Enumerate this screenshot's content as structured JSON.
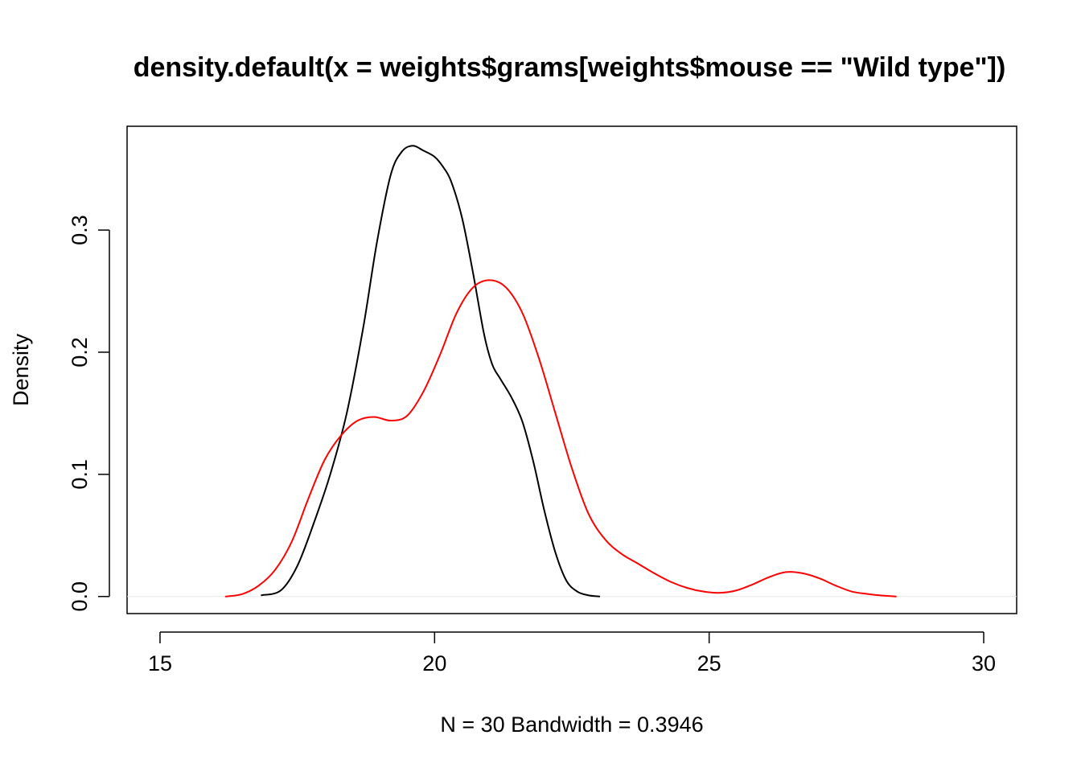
{
  "chart_data": {
    "type": "line",
    "title": "density.default(x = weights$grams[weights$mouse == \"Wild type\"])",
    "xlabel": "N = 30   Bandwidth = 0.3946",
    "ylabel": "Density",
    "xlim": [
      14.4,
      30.6
    ],
    "ylim": [
      -0.014,
      0.385
    ],
    "x_ticks": [
      15,
      20,
      25,
      30
    ],
    "x_tick_labels": [
      "15",
      "20",
      "25",
      "30"
    ],
    "y_ticks": [
      0.0,
      0.1,
      0.2,
      0.3
    ],
    "y_tick_labels": [
      "0.0",
      "0.1",
      "0.2",
      "0.3"
    ],
    "baseline": 0,
    "grid": false,
    "legend": "none",
    "series": [
      {
        "color": "#000000",
        "points": [
          [
            16.85,
            0.001
          ],
          [
            17.2,
            0.005
          ],
          [
            17.5,
            0.025
          ],
          [
            17.8,
            0.06
          ],
          [
            18.1,
            0.1
          ],
          [
            18.4,
            0.15
          ],
          [
            18.7,
            0.22
          ],
          [
            18.95,
            0.29
          ],
          [
            19.2,
            0.345
          ],
          [
            19.4,
            0.364
          ],
          [
            19.6,
            0.369
          ],
          [
            19.8,
            0.365
          ],
          [
            20.0,
            0.36
          ],
          [
            20.15,
            0.352
          ],
          [
            20.3,
            0.34
          ],
          [
            20.5,
            0.31
          ],
          [
            20.7,
            0.265
          ],
          [
            20.9,
            0.215
          ],
          [
            21.05,
            0.19
          ],
          [
            21.2,
            0.178
          ],
          [
            21.4,
            0.163
          ],
          [
            21.6,
            0.143
          ],
          [
            21.8,
            0.11
          ],
          [
            22.0,
            0.07
          ],
          [
            22.2,
            0.036
          ],
          [
            22.4,
            0.013
          ],
          [
            22.6,
            0.004
          ],
          [
            22.8,
            0.001
          ],
          [
            23.0,
            0.0
          ]
        ]
      },
      {
        "color": "#ff0000",
        "points": [
          [
            16.2,
            0.0
          ],
          [
            16.5,
            0.002
          ],
          [
            16.8,
            0.009
          ],
          [
            17.1,
            0.022
          ],
          [
            17.4,
            0.045
          ],
          [
            17.7,
            0.08
          ],
          [
            18.0,
            0.112
          ],
          [
            18.3,
            0.132
          ],
          [
            18.6,
            0.144
          ],
          [
            18.9,
            0.147
          ],
          [
            19.2,
            0.144
          ],
          [
            19.5,
            0.148
          ],
          [
            19.8,
            0.168
          ],
          [
            20.1,
            0.198
          ],
          [
            20.4,
            0.232
          ],
          [
            20.7,
            0.253
          ],
          [
            21.0,
            0.259
          ],
          [
            21.3,
            0.253
          ],
          [
            21.6,
            0.232
          ],
          [
            21.9,
            0.195
          ],
          [
            22.2,
            0.15
          ],
          [
            22.5,
            0.105
          ],
          [
            22.8,
            0.068
          ],
          [
            23.1,
            0.047
          ],
          [
            23.4,
            0.035
          ],
          [
            23.7,
            0.027
          ],
          [
            24.0,
            0.019
          ],
          [
            24.3,
            0.012
          ],
          [
            24.6,
            0.007
          ],
          [
            24.9,
            0.004
          ],
          [
            25.2,
            0.003
          ],
          [
            25.5,
            0.005
          ],
          [
            25.8,
            0.01
          ],
          [
            26.1,
            0.016
          ],
          [
            26.4,
            0.02
          ],
          [
            26.7,
            0.019
          ],
          [
            27.0,
            0.015
          ],
          [
            27.3,
            0.009
          ],
          [
            27.6,
            0.004
          ],
          [
            27.9,
            0.002
          ],
          [
            28.1,
            0.001
          ],
          [
            28.4,
            0.0
          ]
        ]
      }
    ]
  }
}
